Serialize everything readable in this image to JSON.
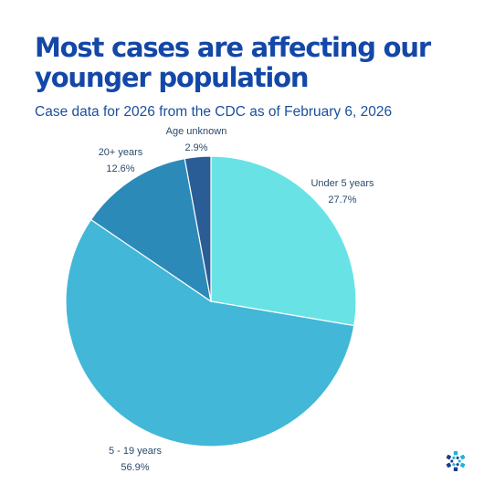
{
  "title": "Most cases are affecting our younger population",
  "subtitle": "Case data for 2026 from the CDC as of February 6, 2026",
  "colors": {
    "title": "#1347a8",
    "subtitle": "#1b4f9c",
    "slices": [
      "#69e2e6",
      "#42b7d8",
      "#2c8ab8",
      "#2a5c96"
    ]
  },
  "logo_icon": "flower-logo-icon",
  "chart_data": {
    "type": "pie",
    "start": "12 o'clock",
    "direction": "clockwise",
    "slices": [
      {
        "label": "Under 5 years",
        "value": 27.7,
        "value_label": "27.7%"
      },
      {
        "label": "5 - 19 years",
        "value": 56.9,
        "value_label": "56.9%"
      },
      {
        "label": "20+ years",
        "value": 12.6,
        "value_label": "12.6%"
      },
      {
        "label": "Age unknown",
        "value": 2.9,
        "value_label": "2.9%"
      }
    ]
  }
}
